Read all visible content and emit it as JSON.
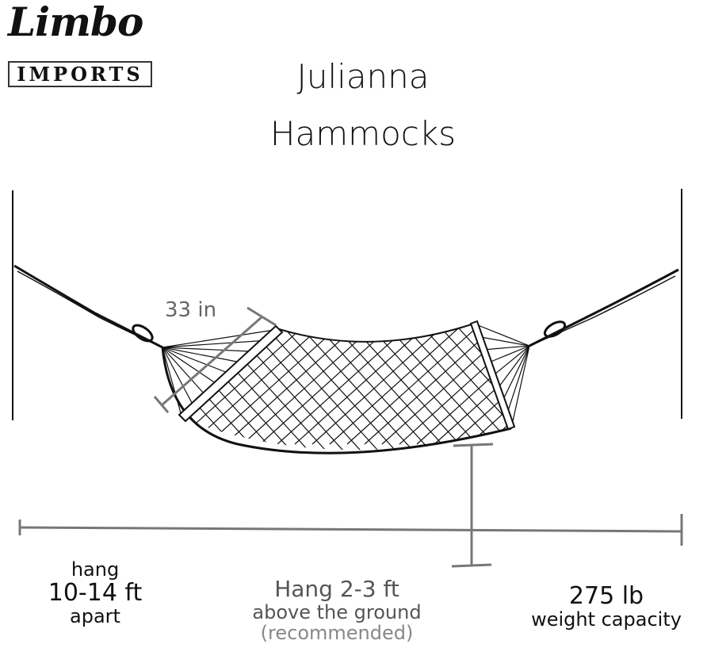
{
  "logo": {
    "script": "Limbo",
    "box": "IMPORTS"
  },
  "title": {
    "line1": "Julianna",
    "line2": "Hammocks"
  },
  "dimensions": {
    "width_label": "33 in"
  },
  "specs": {
    "distance": {
      "line1": "hang",
      "line2": "10-14 ft",
      "line3": "apart"
    },
    "height": {
      "line1": "Hang 2-3 ft",
      "line2": "above the ground",
      "line3": "(recommended)"
    },
    "capacity": {
      "line1": "275 lb",
      "line2": "weight capacity"
    }
  },
  "colors": {
    "ink": "#111111",
    "dimension_lines": "#777777"
  }
}
